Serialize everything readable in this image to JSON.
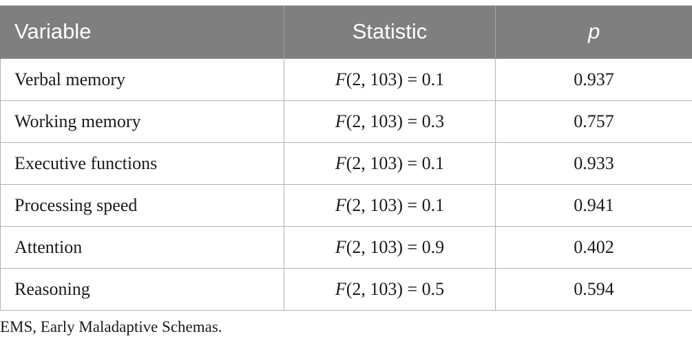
{
  "table": {
    "headers": {
      "variable": "Variable",
      "statistic": "Statistic",
      "p": "p"
    },
    "rows": [
      {
        "variable": "Verbal memory",
        "stat_symbol": "F",
        "stat_rest": "(2, 103) = 0.1",
        "p": "0.937"
      },
      {
        "variable": "Working memory",
        "stat_symbol": "F",
        "stat_rest": "(2, 103) = 0.3",
        "p": "0.757"
      },
      {
        "variable": "Executive functions",
        "stat_symbol": "F",
        "stat_rest": "(2, 103) = 0.1",
        "p": "0.933"
      },
      {
        "variable": "Processing speed",
        "stat_symbol": "F",
        "stat_rest": "(2, 103) = 0.1",
        "p": "0.941"
      },
      {
        "variable": "Attention",
        "stat_symbol": "F",
        "stat_rest": "(2, 103) = 0.9",
        "p": "0.402"
      },
      {
        "variable": "Reasoning",
        "stat_symbol": "F",
        "stat_rest": "(2, 103) = 0.5",
        "p": "0.594"
      }
    ]
  },
  "footnote": "EMS, Early Maladaptive Schemas."
}
